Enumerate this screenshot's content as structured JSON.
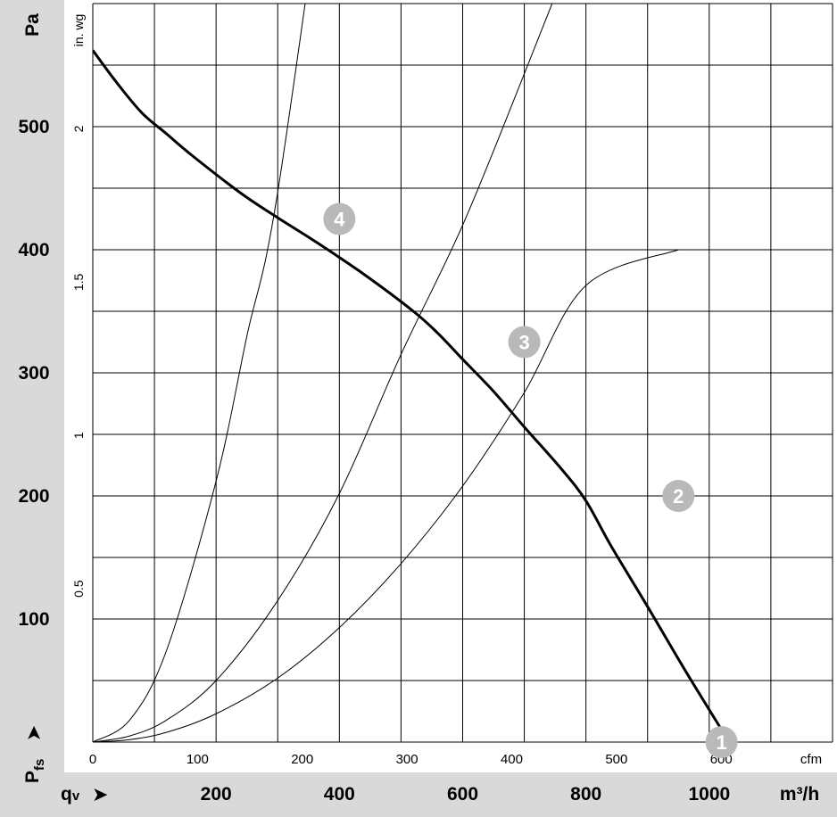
{
  "chart_data": {
    "type": "line",
    "xlabel_primary": "qv",
    "xunit_primary": "m³/h",
    "xunit_secondary": "cfm",
    "ylabel_primary": "Pfs",
    "yunit_primary": "Pa",
    "yunit_secondary": "in. wg",
    "xlim_m3h": [
      0,
      1200
    ],
    "ylim_pa": [
      0,
      560
    ],
    "x_ticks_m3h": [
      "200",
      "400",
      "600",
      "800",
      "1000"
    ],
    "x_ticks_cfm": [
      "0",
      "100",
      "200",
      "300",
      "400",
      "500",
      "600"
    ],
    "y_ticks_pa": [
      "100",
      "200",
      "300",
      "400",
      "500"
    ],
    "y_ticks_inwg": [
      "0.5",
      "1",
      "1.5",
      "2"
    ],
    "grid": true,
    "series": [
      {
        "role": "fan-curve",
        "points": [
          [
            0,
            562
          ],
          [
            40,
            535
          ],
          [
            80,
            511
          ],
          [
            120,
            494
          ],
          [
            160,
            477
          ],
          [
            240,
            446
          ],
          [
            300,
            426
          ],
          [
            360,
            407
          ],
          [
            440,
            380
          ],
          [
            520,
            350
          ],
          [
            560,
            332
          ],
          [
            600,
            311
          ],
          [
            650,
            285
          ],
          [
            700,
            256
          ],
          [
            760,
            222
          ],
          [
            800,
            196
          ],
          [
            840,
            160
          ],
          [
            900,
            110
          ],
          [
            960,
            59
          ],
          [
            1020,
            10
          ]
        ]
      },
      {
        "role": "system-curve",
        "points": [
          [
            0,
            0
          ],
          [
            60,
            2
          ],
          [
            120,
            8
          ],
          [
            200,
            23
          ],
          [
            300,
            52
          ],
          [
            400,
            93
          ],
          [
            500,
            145
          ],
          [
            600,
            208
          ],
          [
            700,
            284
          ],
          [
            800,
            371
          ],
          [
            950,
            400
          ]
        ]
      },
      {
        "role": "system-curve",
        "points": [
          [
            0,
            0
          ],
          [
            60,
            5
          ],
          [
            120,
            18
          ],
          [
            200,
            50
          ],
          [
            300,
            115
          ],
          [
            400,
            202
          ],
          [
            500,
            315
          ],
          [
            600,
            420
          ],
          [
            700,
            543
          ],
          [
            800,
            670
          ]
        ]
      },
      {
        "role": "system-curve",
        "points": [
          [
            0,
            0
          ],
          [
            60,
            18
          ],
          [
            120,
            75
          ],
          [
            200,
            212
          ],
          [
            250,
            330
          ],
          [
            300,
            447
          ],
          [
            400,
            800
          ]
        ]
      }
    ],
    "operating_points": [
      {
        "label": "1",
        "x": 1020,
        "y": 0
      },
      {
        "label": "2",
        "x": 950,
        "y": 200
      },
      {
        "label": "3",
        "x": 700,
        "y": 325
      },
      {
        "label": "4",
        "x": 400,
        "y": 425
      }
    ],
    "colors": {
      "axis_band": "#d9d9d9",
      "grid": "#000000",
      "fan_curve": "#000000",
      "marker": "#b9b9b9"
    }
  }
}
